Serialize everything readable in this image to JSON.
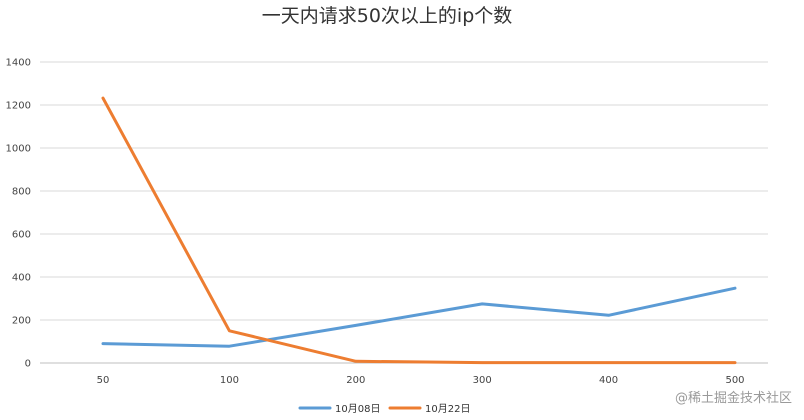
{
  "chart_data": {
    "type": "line",
    "title": "一天内请求50次以上的ip个数",
    "xlabel": "",
    "ylabel": "",
    "categories": [
      "50",
      "100",
      "200",
      "300",
      "400",
      "500"
    ],
    "ylim": [
      0,
      1400
    ],
    "yticks": [
      0,
      200,
      400,
      600,
      800,
      1000,
      1200,
      1400
    ],
    "grid": true,
    "legend_position": "bottom",
    "series": [
      {
        "name": "10月08日",
        "color": "#5b9bd5",
        "values": [
          90,
          78,
          175,
          275,
          222,
          348
        ]
      },
      {
        "name": "10月22日",
        "color": "#ed7d31",
        "values": [
          1232,
          150,
          8,
          2,
          2,
          2
        ]
      }
    ]
  },
  "watermark": "@稀土掘金技术社区"
}
